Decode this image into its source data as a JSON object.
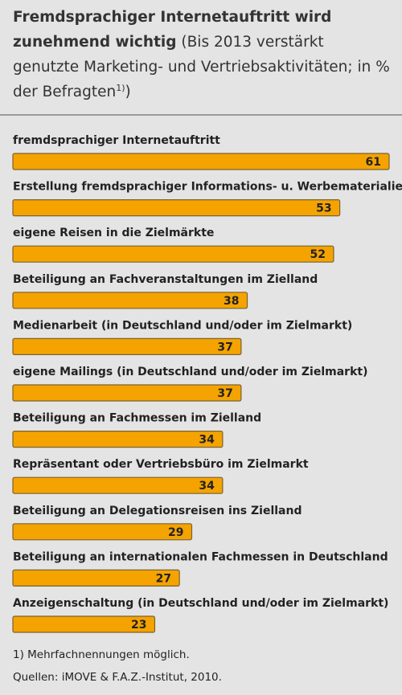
{
  "chart_data": {
    "type": "bar",
    "orientation": "horizontal",
    "title": "Fremdsprachiger Internetauftritt wird zunehmend wichtig",
    "subtitle": "(Bis 2013 verstärkt genutzte Marketing- und Vertriebsaktivitäten; in % der Befragten",
    "subtitle_note": "1)",
    "subtitle_end": ")",
    "categories": [
      "fremdsprachiger Internetauftritt",
      "Erstellung fremdsprachiger Informations- u. Werbematerialien",
      "eigene Reisen in die Zielmärkte",
      "Beteiligung an Fachveranstaltungen im Zielland",
      "Medienarbeit (in Deutschland und/oder im Zielmarkt)",
      "eigene Mailings (in Deutschland und/oder im Zielmarkt)",
      "Beteiligung an Fachmessen im Zielland",
      "Repräsentant oder Vertriebsbüro im Zielmarkt",
      "Beteiligung an Delegationsreisen ins Zielland",
      "Beteiligung an internationalen Fachmessen in Deutschland",
      "Anzeigenschaltung (in Deutschland und/oder im Zielmarkt)"
    ],
    "values": [
      61,
      53,
      52,
      38,
      37,
      37,
      34,
      34,
      29,
      27,
      23
    ],
    "color": "#f5a300",
    "footnotes": [
      "1) Mehrfachnennungen möglich.",
      "Quellen: iMOVE & F.A.Z.-Institut, 2010."
    ]
  }
}
